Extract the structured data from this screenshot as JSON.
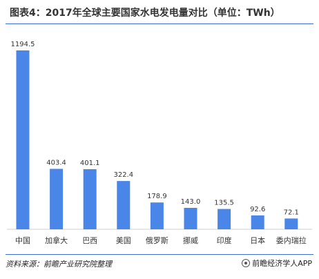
{
  "page": {
    "title": "图表4：2017年全球主要国家水电发电量对比（单位：TWh）",
    "source": "资料来源：前瞻产业研究院整理",
    "brand": "前瞻经济学人APP"
  },
  "chart_data": {
    "type": "bar",
    "title": "图表4：2017年全球主要国家水电发电量对比（单位：TWh）",
    "xlabel": "",
    "ylabel": "",
    "categories": [
      "中国",
      "加拿大",
      "巴西",
      "美国",
      "俄罗斯",
      "挪威",
      "印度",
      "日本",
      "委内瑞拉"
    ],
    "values": [
      1194.5,
      403.4,
      401.1,
      322.4,
      178.9,
      143.0,
      135.5,
      92.6,
      72.1
    ],
    "value_labels": [
      "1194.5",
      "403.4",
      "401.1",
      "322.4",
      "178.9",
      "143.0",
      "135.5",
      "92.6",
      "72.1"
    ],
    "ylim": [
      0,
      1194.5
    ],
    "grid": false,
    "legend": "none",
    "bar_color": "#4a86e8"
  }
}
